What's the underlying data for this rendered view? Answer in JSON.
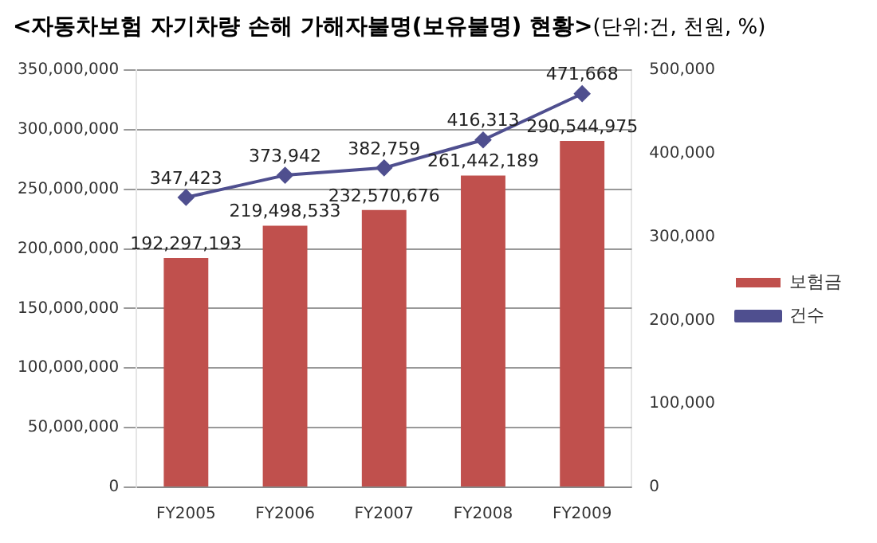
{
  "chart_data": {
    "type": "bar",
    "title": "<자동차보험 자기차량 손해 가해자불명(보유불명) 현황>",
    "subtitle": "(단위:건, 천원, %)",
    "categories": [
      "FY2005",
      "FY2006",
      "FY2007",
      "FY2008",
      "FY2009"
    ],
    "series": [
      {
        "name": "보험금",
        "color": "#c0504d",
        "values": [
          192297193,
          219498533,
          232570676,
          261442189,
          290544975
        ],
        "value_labels": [
          "192,297,193",
          "219,498,533",
          "232,570,676",
          "261,442,189",
          "290,544,975"
        ]
      },
      {
        "name": "건수",
        "type": "line",
        "axis": "y2",
        "color": "#4f4f8f",
        "marker": "diamond",
        "values": [
          347423,
          373942,
          382759,
          416313,
          471668
        ],
        "value_labels": [
          "347,423",
          "373,942",
          "382,759",
          "416,313",
          "471,668"
        ]
      }
    ],
    "ylim": [
      0,
      350000000
    ],
    "yticks": [
      0,
      {
        "value": 50000000,
        "label": "50,000,000"
      },
      {
        "value": 100000000,
        "label": "100,000,000"
      },
      {
        "value": 150000000,
        "label": "150,000,000"
      },
      {
        "value": 200000000,
        "label": "200,000,000"
      },
      {
        "value": 250000000,
        "label": "250,000,000"
      },
      {
        "value": 300000000,
        "label": "300,000,000"
      },
      {
        "value": 350000000,
        "label": "350,000,000"
      }
    ],
    "y2lim": [
      0,
      500000
    ],
    "y2ticks": [
      0,
      {
        "value": 100000,
        "label": "100,000"
      },
      {
        "value": 200000,
        "label": "200,000"
      },
      {
        "value": 300000,
        "label": "300,000"
      },
      {
        "value": 400000,
        "label": "400,000"
      },
      {
        "value": 500000,
        "label": "500,000"
      }
    ],
    "grid": "y",
    "legend": "right"
  }
}
